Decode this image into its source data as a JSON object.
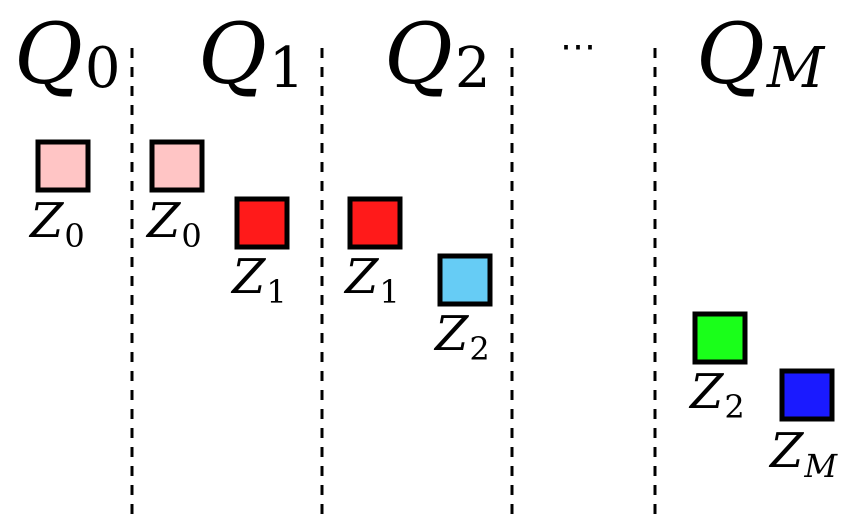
{
  "columns": [
    {
      "symbol": "Q",
      "subscript": "0"
    },
    {
      "symbol": "Q",
      "subscript": "1"
    },
    {
      "symbol": "Q",
      "subscript": "2"
    },
    {
      "symbol": "Q",
      "subscript": "M"
    }
  ],
  "ellipsis": "⋯",
  "blocks": [
    {
      "column": "Q_0",
      "symbol": "Z",
      "subscript": "0",
      "color": "#ffc5c5"
    },
    {
      "column": "Q_1",
      "symbol": "Z",
      "subscript": "0",
      "color": "#ffc5c5"
    },
    {
      "column": "Q_1",
      "symbol": "Z",
      "subscript": "1",
      "color": "#ff1a1a"
    },
    {
      "column": "Q_2",
      "symbol": "Z",
      "subscript": "1",
      "color": "#ff1a1a"
    },
    {
      "column": "Q_2",
      "symbol": "Z",
      "subscript": "2",
      "color": "#66ccf5"
    },
    {
      "column": "Q_M",
      "symbol": "Z",
      "subscript": "2",
      "color": "#1aff1a"
    },
    {
      "column": "Q_M",
      "symbol": "Z",
      "subscript": "M",
      "color": "#1a1aff"
    }
  ]
}
